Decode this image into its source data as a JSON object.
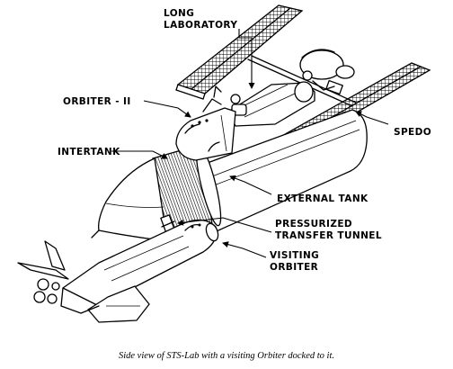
{
  "labels": {
    "long_laboratory_line1": "LONG",
    "long_laboratory_line2": "LABORATORY",
    "orbiter_ii": "ORBITER - II",
    "intertank": "INTERTANK",
    "spedo": "SPEDO",
    "external_tank": "EXTERNAL TANK",
    "pressurized_line1": "PRESSURIZED",
    "pressurized_line2": "TRANSFER TUNNEL",
    "visiting_line1": "VISITING",
    "visiting_line2": "ORBITER"
  },
  "caption": "Side view of STS-Lab with a visiting Orbiter docked to it."
}
